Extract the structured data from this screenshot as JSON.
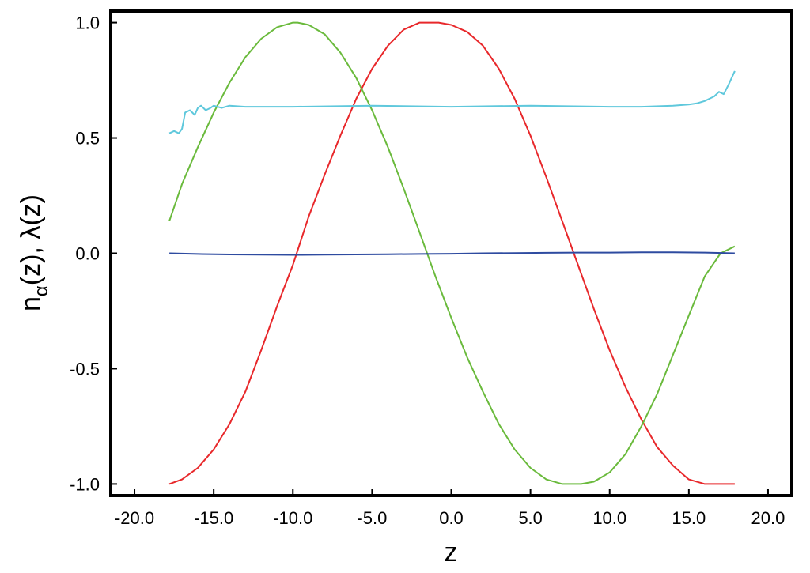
{
  "chart_data": {
    "type": "line",
    "title": "",
    "xlabel": "z",
    "ylabel_parts": {
      "n": "n",
      "sub": "α",
      "rest": "(z), λ(z)"
    },
    "xlim": [
      -21.5,
      21.5
    ],
    "ylim": [
      -1.05,
      1.05
    ],
    "xticks": [
      -20,
      -15,
      -10,
      -5,
      0,
      5,
      10,
      15,
      20
    ],
    "xtick_labels": [
      "-20.0",
      "-15.0",
      "-10.0",
      "-5.0",
      "0.0",
      "5.0",
      "10.0",
      "15.0",
      "20.0"
    ],
    "yticks": [
      -1,
      -0.5,
      0,
      0.5,
      1
    ],
    "ytick_labels": [
      "-1.0",
      "-0.5",
      "0.0",
      "0.5",
      "1.0"
    ],
    "grid": false,
    "legend": "none",
    "series": [
      {
        "color": "#e8282b",
        "x": [
          -17.8,
          -17,
          -16,
          -15,
          -14,
          -13,
          -12,
          -11,
          -10,
          -9,
          -8,
          -7,
          -6,
          -5,
          -4,
          -3,
          -2,
          -1,
          -0.8,
          0,
          1,
          2,
          3,
          4,
          5,
          6,
          7,
          8,
          9,
          10,
          11,
          12,
          13,
          14,
          15,
          16,
          17,
          17.9
        ],
        "y": [
          -1.0,
          -0.98,
          -0.93,
          -0.85,
          -0.74,
          -0.6,
          -0.42,
          -0.23,
          -0.05,
          0.16,
          0.34,
          0.51,
          0.67,
          0.8,
          0.9,
          0.97,
          1.0,
          1.0,
          1.0,
          0.99,
          0.96,
          0.9,
          0.8,
          0.67,
          0.51,
          0.33,
          0.14,
          -0.05,
          -0.24,
          -0.42,
          -0.58,
          -0.72,
          -0.84,
          -0.92,
          -0.98,
          -1.0,
          -1.0,
          -1.0
        ]
      },
      {
        "color": "#6aba3c",
        "x": [
          -17.8,
          -17,
          -16,
          -15,
          -14,
          -13,
          -12,
          -11,
          -10,
          -9.7,
          -9,
          -8,
          -7,
          -6,
          -5,
          -4,
          -3,
          -2,
          -1,
          0,
          1,
          2,
          3,
          4,
          5,
          6,
          7,
          8,
          8.2,
          9,
          10,
          11,
          12,
          13,
          14,
          15,
          16,
          17,
          17.9
        ],
        "y": [
          0.14,
          0.3,
          0.46,
          0.61,
          0.74,
          0.85,
          0.93,
          0.98,
          1.0,
          1.0,
          0.99,
          0.95,
          0.87,
          0.76,
          0.62,
          0.46,
          0.28,
          0.09,
          -0.1,
          -0.28,
          -0.45,
          -0.6,
          -0.74,
          -0.85,
          -0.93,
          -0.98,
          -1.0,
          -1.0,
          -1.0,
          -0.99,
          -0.95,
          -0.87,
          -0.75,
          -0.61,
          -0.44,
          -0.27,
          -0.1,
          0.0,
          0.03
        ]
      },
      {
        "color": "#5fc8dc",
        "x": [
          -17.8,
          -17.5,
          -17.2,
          -17,
          -16.8,
          -16.5,
          -16.2,
          -16,
          -15.8,
          -15.5,
          -15.2,
          -15,
          -14.5,
          -14,
          -13,
          -12,
          -10,
          -5,
          0,
          5,
          10,
          12,
          14,
          15,
          15.5,
          16,
          16.3,
          16.6,
          16.9,
          17.2,
          17.5,
          17.9
        ],
        "y": [
          0.52,
          0.53,
          0.52,
          0.54,
          0.61,
          0.62,
          0.6,
          0.63,
          0.64,
          0.62,
          0.63,
          0.64,
          0.63,
          0.64,
          0.635,
          0.635,
          0.635,
          0.64,
          0.635,
          0.64,
          0.635,
          0.635,
          0.64,
          0.645,
          0.65,
          0.66,
          0.67,
          0.68,
          0.7,
          0.69,
          0.73,
          0.79
        ]
      },
      {
        "color": "#2e4ba0",
        "x": [
          -17.8,
          -16,
          -14,
          -12,
          -10,
          -8,
          -6,
          -4,
          -2,
          0,
          2,
          4,
          6,
          8,
          10,
          12,
          14,
          16,
          17.9
        ],
        "y": [
          0.0,
          -0.003,
          -0.005,
          -0.006,
          -0.007,
          -0.006,
          -0.005,
          -0.004,
          -0.003,
          -0.002,
          0.0,
          0.001,
          0.002,
          0.003,
          0.003,
          0.004,
          0.004,
          0.003,
          0.0
        ]
      }
    ]
  }
}
